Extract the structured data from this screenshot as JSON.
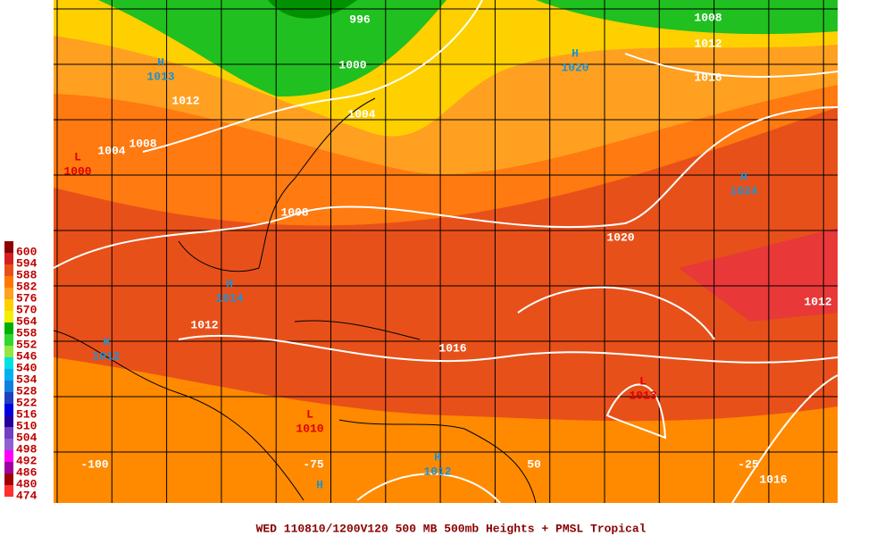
{
  "title": "WED 110810/1200V120  500 MB 500mb Heights + PMSL Tropical",
  "legend": {
    "levels": [
      600,
      594,
      588,
      582,
      576,
      570,
      564,
      558,
      552,
      546,
      540,
      534,
      528,
      522,
      516,
      510,
      504,
      498,
      492,
      486,
      480,
      474
    ],
    "colors": [
      "#8b0000",
      "#d42020",
      "#e8501a",
      "#ff7800",
      "#ffa020",
      "#ffd000",
      "#f0f000",
      "#00b000",
      "#30d830",
      "#90e840",
      "#00e0e0",
      "#00b0f0",
      "#1080e0",
      "#2040c0",
      "#0000e0",
      "#2000a0",
      "#7040c0",
      "#9060d0",
      "#ff00ff",
      "#a000a0",
      "#a00000",
      "#ff3030"
    ]
  },
  "contour_labels": [
    996,
    1008,
    1012,
    1016,
    1000,
    1004,
    1012,
    1008,
    1004,
    1008,
    1020,
    1012,
    1012,
    1016,
    1016
  ],
  "centers": [
    {
      "symbol": "H",
      "value": 1013
    },
    {
      "symbol": "H",
      "value": 1020
    },
    {
      "symbol": "H",
      "value": 1024
    },
    {
      "symbol": "L",
      "value": 1000
    },
    {
      "symbol": "H",
      "value": 1014
    },
    {
      "symbol": "H",
      "value": 1012
    },
    {
      "symbol": "L",
      "value": 1010
    },
    {
      "symbol": "L",
      "value": 1013
    },
    {
      "symbol": "H",
      "value": 1012
    },
    {
      "symbol": "H"
    }
  ],
  "longitude_labels": [
    "-100",
    "-75",
    "50",
    "-25"
  ]
}
